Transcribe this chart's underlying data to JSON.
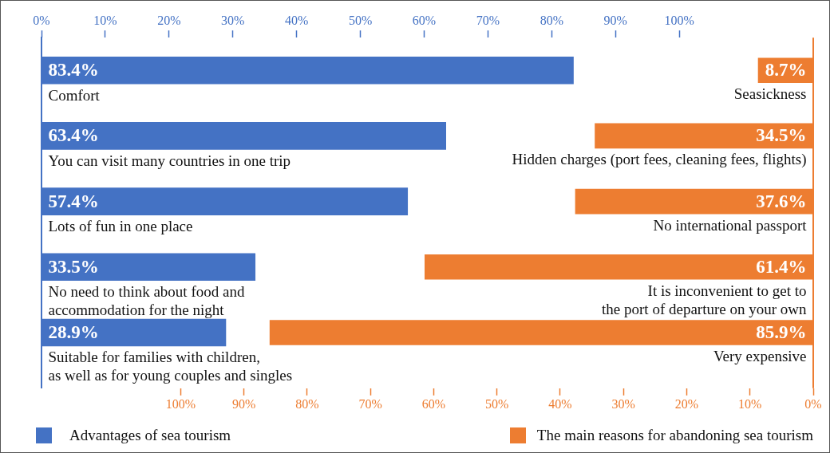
{
  "chart_data": {
    "type": "bar",
    "orientation": "horizontal",
    "categories": [
      null,
      null,
      null,
      null,
      null
    ],
    "series": [
      {
        "name": "Advantages of sea tourism",
        "color": "#4472c4",
        "axis": "x2",
        "values": [
          83.4,
          63.4,
          57.4,
          33.5,
          28.9
        ],
        "value_labels": [
          "83.4%",
          "63.4%",
          "57.4%",
          "33.5%",
          "28.9%"
        ]
      },
      {
        "name": "The main reasons for abandoning sea tourism",
        "color": "#ed7d31",
        "values": [
          8.7,
          34.5,
          37.6,
          61.4,
          85.9
        ],
        "value_labels": [
          "8.7%",
          "34.5%",
          "37.6%",
          "61.4%",
          "85.9%"
        ]
      }
    ],
    "x2lim": [
      0,
      121
    ],
    "x2ticks": [
      {
        "value": 0,
        "label": "0%"
      },
      {
        "value": 10,
        "label": "10%"
      },
      {
        "value": 20,
        "label": "20%"
      },
      {
        "value": 30,
        "label": "30%"
      },
      {
        "value": 40,
        "label": "40%"
      },
      {
        "value": 50,
        "label": "50%"
      },
      {
        "value": 60,
        "label": "60%"
      },
      {
        "value": 70,
        "label": "70%"
      },
      {
        "value": 80,
        "label": "80%"
      },
      {
        "value": 90,
        "label": "90%"
      },
      {
        "value": 100,
        "label": "100%"
      }
    ],
    "xlim": [
      122,
      0
    ],
    "xticks": [
      {
        "value": 100,
        "label": "100%"
      },
      {
        "value": 90,
        "label": "90%"
      },
      {
        "value": 80,
        "label": "80%"
      },
      {
        "value": 70,
        "label": "70%"
      },
      {
        "value": 60,
        "label": "60%"
      },
      {
        "value": 50,
        "label": "50%"
      },
      {
        "value": 40,
        "label": "40%"
      },
      {
        "value": 30,
        "label": "30%"
      },
      {
        "value": 20,
        "label": "20%"
      },
      {
        "value": 10,
        "label": "10%"
      },
      {
        "value": 0,
        "label": "0%"
      }
    ],
    "annotations": [
      "Comfort",
      "You can visit many countries in one trip",
      "Lots of fun in one place",
      "No need to think about food and\naccommodation for the night",
      "Suitable for families with children,\nas well as for young couples and singles",
      "Seasickness",
      "Hidden charges (port fees, cleaning fees, flights)",
      "No international passport",
      "It is inconvenient to get to\nthe port of departure on your own",
      "Very expensive"
    ],
    "legend": "bottom"
  }
}
